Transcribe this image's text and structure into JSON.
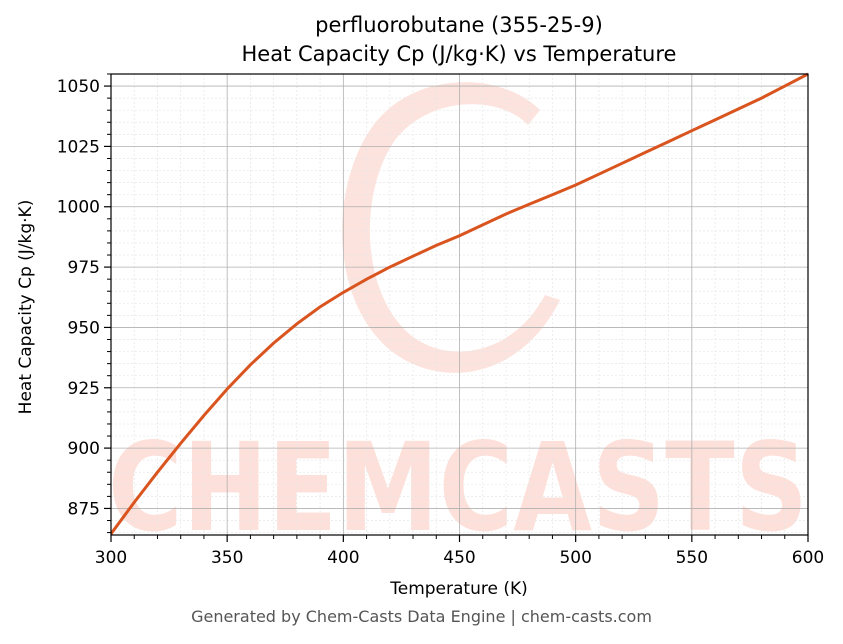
{
  "chart_data": {
    "type": "line",
    "title_line1": "perfluorobutane (355-25-9)",
    "title_line2": "Heat Capacity Cp (J/kg·K) vs Temperature",
    "xlabel": "Temperature (K)",
    "ylabel": "Heat Capacity Cp (J/kg·K)",
    "xlim": [
      300,
      600
    ],
    "ylim": [
      864,
      1055
    ],
    "x_ticks": [
      300,
      350,
      400,
      450,
      500,
      550,
      600
    ],
    "y_ticks": [
      875,
      900,
      925,
      950,
      975,
      1000,
      1025,
      1050
    ],
    "grid": true,
    "line_color": "#d9541e",
    "series": [
      {
        "x": [
          300,
          310,
          320,
          330,
          340,
          350,
          360,
          370,
          380,
          390,
          400,
          410,
          420,
          430,
          440,
          450,
          460,
          470,
          480,
          490,
          500,
          510,
          520,
          530,
          540,
          550,
          560,
          570,
          580,
          590,
          600
        ],
        "y": [
          864.5,
          877.5,
          890.0,
          902.0,
          913.5,
          924.5,
          934.5,
          943.5,
          951.5,
          958.5,
          964.5,
          970.0,
          975.0,
          979.5,
          984.0,
          988.0,
          992.5,
          997.0,
          1001.0,
          1005.0,
          1009.0,
          1013.5,
          1018.0,
          1022.5,
          1027.0,
          1031.5,
          1036.0,
          1040.5,
          1045.0,
          1050.0,
          1055.0
        ]
      }
    ]
  },
  "watermark": {
    "text": "CHEMCASTS",
    "color": "#fde0d9"
  },
  "footer": "Generated by Chem-Casts Data Engine | chem-casts.com"
}
